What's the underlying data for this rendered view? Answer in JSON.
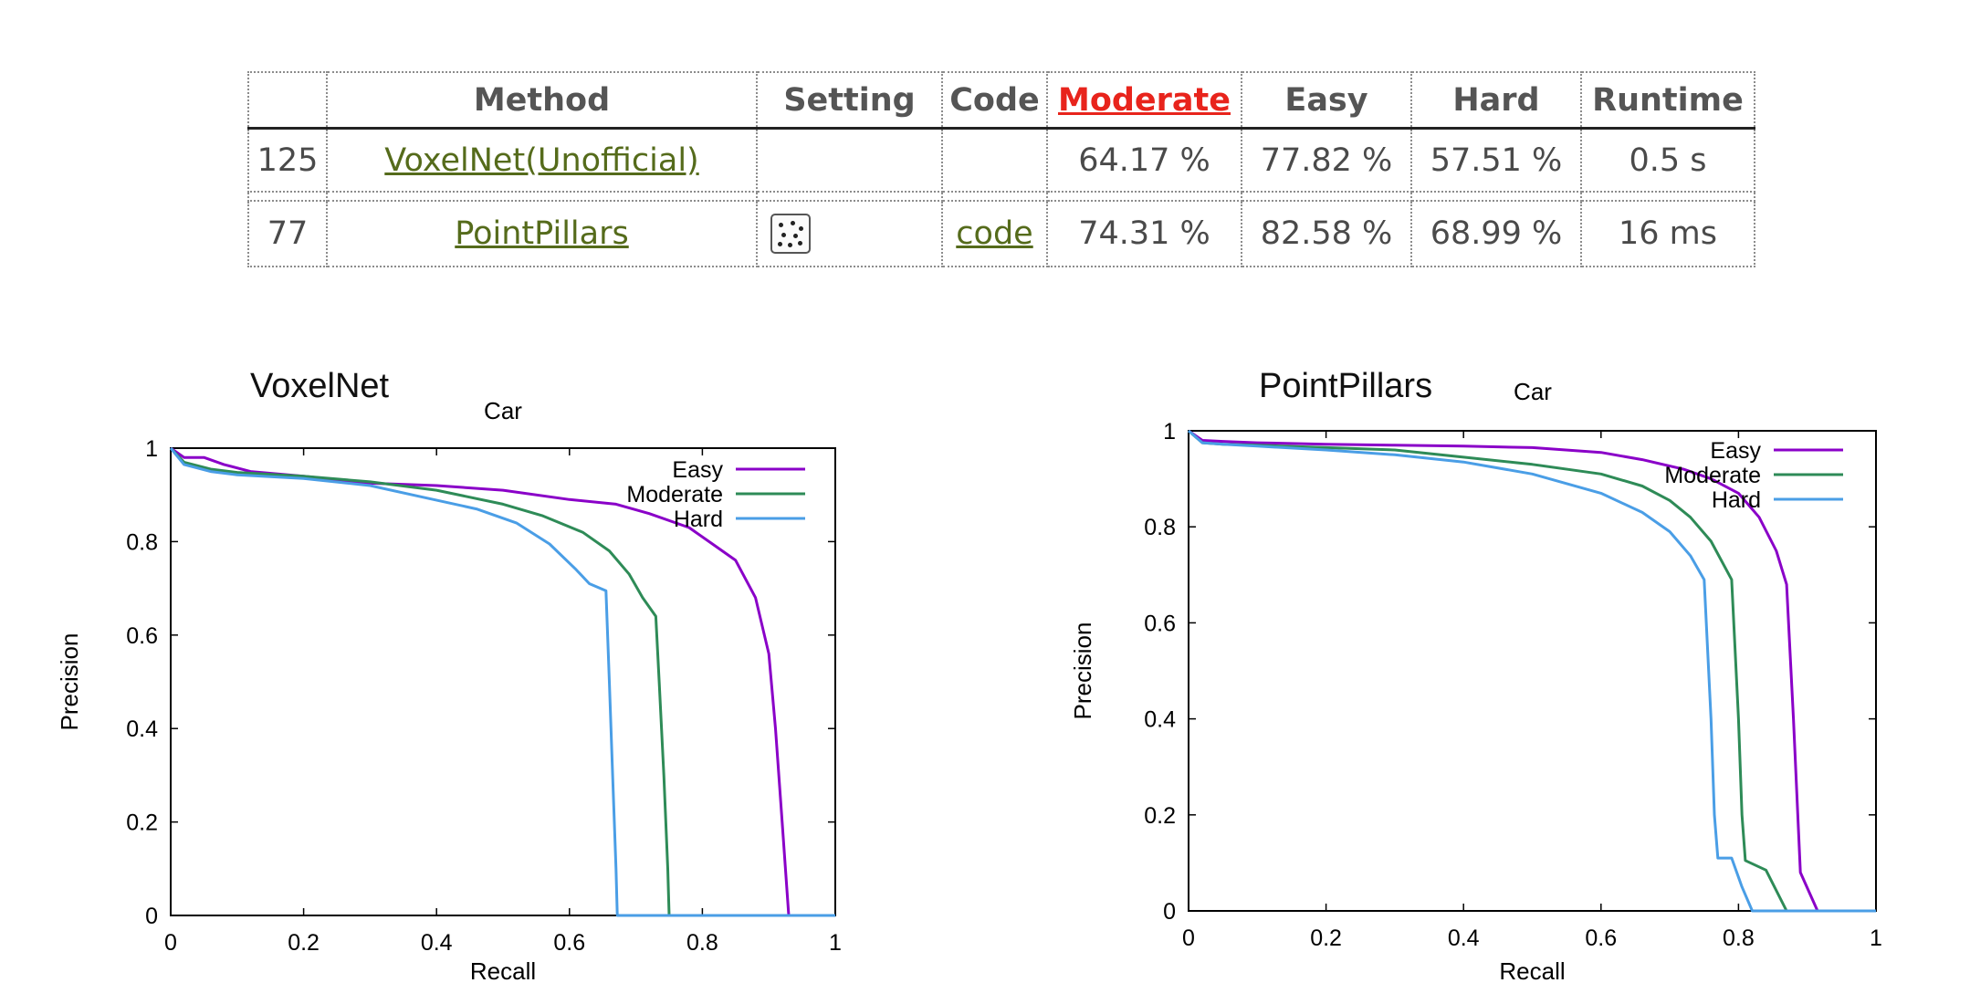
{
  "table": {
    "headers": {
      "rank": "",
      "method": "Method",
      "setting": "Setting",
      "code": "Code",
      "moderate": "Moderate",
      "easy": "Easy",
      "hard": "Hard",
      "runtime": "Runtime"
    },
    "rows": [
      {
        "rank": "125",
        "method": "VoxelNet(Unofficial)",
        "setting": "",
        "code": "",
        "moderate": "64.17 %",
        "easy": "77.82 %",
        "hard": "57.51 %",
        "runtime": "0.5 s"
      },
      {
        "rank": "77",
        "method": "PointPillars",
        "setting_icon": "point-cloud-icon",
        "code": "code",
        "moderate": "74.31 %",
        "easy": "82.58 %",
        "hard": "68.99 %",
        "runtime": "16 ms"
      }
    ],
    "colors": {
      "link": "#556b1b",
      "sort_link": "#e8241c"
    }
  },
  "chart_data": [
    {
      "type": "line",
      "heading": "VoxelNet",
      "title": "Car",
      "xlabel": "Recall",
      "ylabel": "Precision",
      "xlim": [
        0,
        1
      ],
      "ylim": [
        0,
        1
      ],
      "xticks": [
        "0",
        "0.2",
        "0.4",
        "0.6",
        "0.8",
        "1"
      ],
      "yticks": [
        "0",
        "0.2",
        "0.4",
        "0.6",
        "0.8",
        "1"
      ],
      "grid": false,
      "legend": "top-right",
      "series": [
        {
          "name": "Easy",
          "color": "#8a00c8",
          "points": [
            [
              0,
              1.0
            ],
            [
              0.02,
              0.98
            ],
            [
              0.05,
              0.98
            ],
            [
              0.08,
              0.965
            ],
            [
              0.12,
              0.95
            ],
            [
              0.2,
              0.94
            ],
            [
              0.3,
              0.925
            ],
            [
              0.4,
              0.92
            ],
            [
              0.5,
              0.91
            ],
            [
              0.6,
              0.89
            ],
            [
              0.67,
              0.88
            ],
            [
              0.72,
              0.86
            ],
            [
              0.78,
              0.83
            ],
            [
              0.82,
              0.79
            ],
            [
              0.85,
              0.76
            ],
            [
              0.88,
              0.68
            ],
            [
              0.9,
              0.56
            ],
            [
              0.91,
              0.4
            ],
            [
              0.92,
              0.2
            ],
            [
              0.93,
              0.0
            ],
            [
              1.0,
              0.0
            ]
          ]
        },
        {
          "name": "Moderate",
          "color": "#2e8b57",
          "points": [
            [
              0,
              1.0
            ],
            [
              0.02,
              0.97
            ],
            [
              0.06,
              0.955
            ],
            [
              0.1,
              0.948
            ],
            [
              0.2,
              0.94
            ],
            [
              0.3,
              0.928
            ],
            [
              0.4,
              0.91
            ],
            [
              0.5,
              0.88
            ],
            [
              0.56,
              0.855
            ],
            [
              0.62,
              0.82
            ],
            [
              0.66,
              0.78
            ],
            [
              0.69,
              0.73
            ],
            [
              0.71,
              0.68
            ],
            [
              0.73,
              0.64
            ],
            [
              0.735,
              0.5
            ],
            [
              0.742,
              0.3
            ],
            [
              0.748,
              0.1
            ],
            [
              0.75,
              0.0
            ],
            [
              1.0,
              0.0
            ]
          ]
        },
        {
          "name": "Hard",
          "color": "#4a9ee6",
          "points": [
            [
              0,
              1.0
            ],
            [
              0.02,
              0.965
            ],
            [
              0.06,
              0.95
            ],
            [
              0.1,
              0.943
            ],
            [
              0.2,
              0.935
            ],
            [
              0.3,
              0.92
            ],
            [
              0.38,
              0.895
            ],
            [
              0.46,
              0.87
            ],
            [
              0.52,
              0.84
            ],
            [
              0.57,
              0.795
            ],
            [
              0.61,
              0.74
            ],
            [
              0.63,
              0.71
            ],
            [
              0.655,
              0.695
            ],
            [
              0.66,
              0.5
            ],
            [
              0.665,
              0.3
            ],
            [
              0.67,
              0.1
            ],
            [
              0.672,
              0.0
            ],
            [
              1.0,
              0.0
            ]
          ]
        }
      ]
    },
    {
      "type": "line",
      "heading": "PointPillars",
      "title": "Car",
      "xlabel": "Recall",
      "ylabel": "Precision",
      "xlim": [
        0,
        1
      ],
      "ylim": [
        0,
        1
      ],
      "xticks": [
        "0",
        "0.2",
        "0.4",
        "0.6",
        "0.8",
        "1"
      ],
      "yticks": [
        "0",
        "0.2",
        "0.4",
        "0.6",
        "0.8",
        "1"
      ],
      "grid": false,
      "legend": "top-right",
      "series": [
        {
          "name": "Easy",
          "color": "#8a00c8",
          "points": [
            [
              0,
              1.0
            ],
            [
              0.02,
              0.98
            ],
            [
              0.05,
              0.978
            ],
            [
              0.1,
              0.975
            ],
            [
              0.2,
              0.972
            ],
            [
              0.3,
              0.97
            ],
            [
              0.4,
              0.968
            ],
            [
              0.5,
              0.965
            ],
            [
              0.6,
              0.955
            ],
            [
              0.66,
              0.94
            ],
            [
              0.72,
              0.92
            ],
            [
              0.76,
              0.9
            ],
            [
              0.8,
              0.87
            ],
            [
              0.83,
              0.82
            ],
            [
              0.855,
              0.75
            ],
            [
              0.87,
              0.68
            ],
            [
              0.88,
              0.4
            ],
            [
              0.89,
              0.08
            ],
            [
              0.915,
              0.0
            ],
            [
              1.0,
              0.0
            ]
          ]
        },
        {
          "name": "Moderate",
          "color": "#2e8b57",
          "points": [
            [
              0,
              1.0
            ],
            [
              0.02,
              0.975
            ],
            [
              0.05,
              0.972
            ],
            [
              0.1,
              0.97
            ],
            [
              0.2,
              0.965
            ],
            [
              0.3,
              0.96
            ],
            [
              0.4,
              0.945
            ],
            [
              0.5,
              0.93
            ],
            [
              0.6,
              0.91
            ],
            [
              0.66,
              0.885
            ],
            [
              0.7,
              0.855
            ],
            [
              0.73,
              0.82
            ],
            [
              0.76,
              0.77
            ],
            [
              0.79,
              0.69
            ],
            [
              0.8,
              0.4
            ],
            [
              0.805,
              0.2
            ],
            [
              0.81,
              0.105
            ],
            [
              0.84,
              0.085
            ],
            [
              0.87,
              0.0
            ],
            [
              1.0,
              0.0
            ]
          ]
        },
        {
          "name": "Hard",
          "color": "#4a9ee6",
          "points": [
            [
              0,
              1.0
            ],
            [
              0.02,
              0.975
            ],
            [
              0.05,
              0.972
            ],
            [
              0.1,
              0.968
            ],
            [
              0.2,
              0.96
            ],
            [
              0.3,
              0.95
            ],
            [
              0.4,
              0.935
            ],
            [
              0.5,
              0.91
            ],
            [
              0.6,
              0.87
            ],
            [
              0.66,
              0.83
            ],
            [
              0.7,
              0.79
            ],
            [
              0.73,
              0.74
            ],
            [
              0.75,
              0.69
            ],
            [
              0.76,
              0.4
            ],
            [
              0.765,
              0.2
            ],
            [
              0.77,
              0.11
            ],
            [
              0.79,
              0.11
            ],
            [
              0.805,
              0.05
            ],
            [
              0.82,
              0.0
            ],
            [
              1.0,
              0.0
            ]
          ]
        }
      ]
    }
  ]
}
